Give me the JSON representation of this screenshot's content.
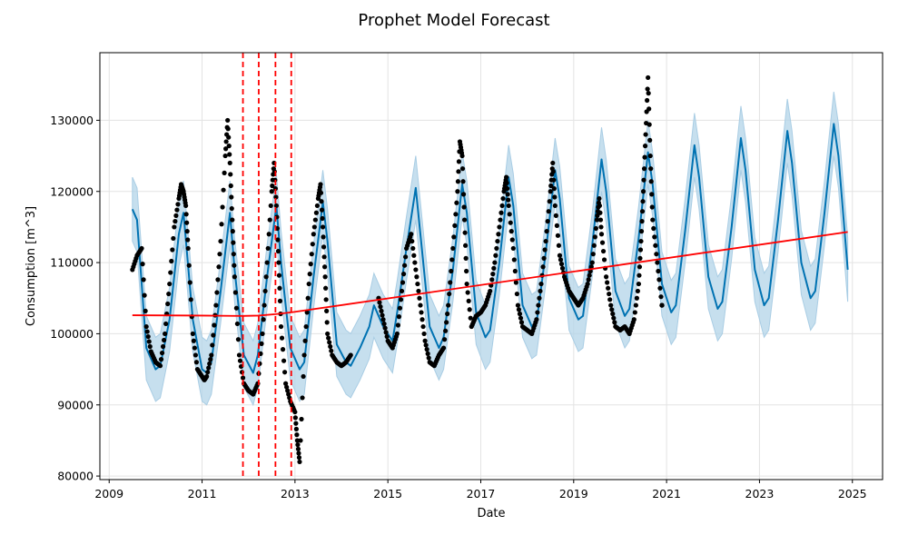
{
  "chart_data": {
    "type": "line",
    "title": "Prophet Model Forecast",
    "xlabel": "Date",
    "ylabel": "Consumption [m^3]",
    "xlim": [
      2008.8,
      2025.65
    ],
    "ylim": [
      79500,
      139500
    ],
    "grid": true,
    "xticks": [
      2009,
      2011,
      2013,
      2015,
      2017,
      2019,
      2021,
      2023,
      2025
    ],
    "xtick_labels": [
      "2009",
      "2011",
      "2013",
      "2015",
      "2017",
      "2019",
      "2021",
      "2023",
      "2025"
    ],
    "yticks": [
      80000,
      90000,
      100000,
      110000,
      120000,
      130000
    ],
    "ytick_labels": [
      "80000",
      "90000",
      "100000",
      "110000",
      "120000",
      "130000"
    ],
    "changepoints": [
      2011.88,
      2012.22,
      2012.58,
      2012.92
    ],
    "series": [
      {
        "name": "trend",
        "color": "#ff0000",
        "x": [
          2009.5,
          2011.0,
          2011.88,
          2012.22,
          2012.58,
          2012.92,
          2024.9
        ],
        "y": [
          102600,
          102550,
          102500,
          102550,
          102750,
          103000,
          114300
        ]
      },
      {
        "name": "forecast",
        "color": "#0072b2",
        "x": [
          2009.5,
          2009.6,
          2009.8,
          2010.0,
          2010.1,
          2010.3,
          2010.5,
          2010.6,
          2010.8,
          2011.0,
          2011.1,
          2011.2,
          2011.4,
          2011.6,
          2011.7,
          2011.9,
          2012.1,
          2012.2,
          2012.4,
          2012.6,
          2012.7,
          2012.9,
          2013.1,
          2013.2,
          2013.4,
          2013.6,
          2013.7,
          2013.9,
          2014.1,
          2014.2,
          2014.4,
          2014.6,
          2014.7,
          2014.9,
          2015.1,
          2015.2,
          2015.4,
          2015.6,
          2015.7,
          2015.9,
          2016.1,
          2016.2,
          2016.4,
          2016.6,
          2016.7,
          2016.9,
          2017.1,
          2017.2,
          2017.4,
          2017.6,
          2017.7,
          2017.9,
          2018.1,
          2018.2,
          2018.4,
          2018.6,
          2018.7,
          2018.9,
          2019.1,
          2019.2,
          2019.4,
          2019.6,
          2019.7,
          2019.9,
          2020.1,
          2020.2,
          2020.4,
          2020.6,
          2020.7,
          2020.9,
          2021.1,
          2021.2,
          2021.4,
          2021.6,
          2021.7,
          2021.9,
          2022.1,
          2022.2,
          2022.4,
          2022.6,
          2022.7,
          2022.9,
          2023.1,
          2023.2,
          2023.4,
          2023.6,
          2023.7,
          2023.9,
          2024.1,
          2024.2,
          2024.4,
          2024.6,
          2024.7,
          2024.9
        ],
        "y": [
          117500,
          116000,
          98000,
          95000,
          95500,
          102000,
          114000,
          117000,
          102000,
          95000,
          94500,
          96000,
          106000,
          117000,
          109000,
          97000,
          94500,
          97000,
          108000,
          118000,
          110000,
          98000,
          95000,
          96000,
          108000,
          118500,
          113000,
          98500,
          96000,
          95500,
          98000,
          101000,
          104000,
          101000,
          99000,
          103000,
          112000,
          120500,
          114000,
          101000,
          98000,
          99500,
          109000,
          121000,
          117000,
          103000,
          99500,
          100500,
          110000,
          122000,
          118000,
          104000,
          101000,
          101500,
          111500,
          123000,
          119000,
          105000,
          102000,
          102500,
          112500,
          124500,
          120000,
          106000,
          102500,
          103500,
          113500,
          125500,
          121000,
          107000,
          103000,
          104000,
          114500,
          126500,
          122000,
          108000,
          103500,
          104500,
          115000,
          127500,
          123000,
          109000,
          104000,
          105000,
          116000,
          128500,
          124000,
          110000,
          105000,
          106000,
          117000,
          129500,
          125000,
          109000
        ],
        "band_halfwidth": 4500,
        "band_color": "#b3d4e8"
      },
      {
        "name": "observations",
        "color": "#000000",
        "x": [
          2009.5,
          2009.6,
          2009.7,
          2009.8,
          2009.9,
          2010.0,
          2010.1,
          2010.2,
          2010.3,
          2010.4,
          2010.5,
          2010.55,
          2010.6,
          2010.65,
          2010.7,
          2010.8,
          2010.9,
          2011.0,
          2011.05,
          2011.1,
          2011.2,
          2011.3,
          2011.4,
          2011.5,
          2011.55,
          2011.6,
          2011.65,
          2011.7,
          2011.8,
          2011.9,
          2012.0,
          2012.1,
          2012.2,
          2012.3,
          2012.4,
          2012.5,
          2012.55,
          2012.6,
          2012.65,
          2012.7,
          2012.8,
          2012.9,
          2013.0,
          2013.05,
          2013.1,
          2013.2,
          2013.3,
          2013.4,
          2013.5,
          2013.55,
          2013.6,
          2013.65,
          2013.7,
          2013.8,
          2013.9,
          2014.0,
          2014.1,
          2014.2,
          2014.8,
          2014.9,
          2015.0,
          2015.1,
          2015.2,
          2015.3,
          2015.4,
          2015.5,
          2015.6,
          2015.7,
          2015.8,
          2015.9,
          2016.0,
          2016.1,
          2016.2,
          2016.3,
          2016.4,
          2016.5,
          2016.55,
          2016.6,
          2016.65,
          2016.7,
          2016.8,
          2016.9,
          2017.0,
          2017.1,
          2017.2,
          2017.3,
          2017.4,
          2017.5,
          2017.55,
          2017.6,
          2017.7,
          2017.8,
          2017.9,
          2018.0,
          2018.1,
          2018.2,
          2018.3,
          2018.4,
          2018.5,
          2018.55,
          2018.6,
          2018.7,
          2018.8,
          2018.9,
          2019.0,
          2019.1,
          2019.2,
          2019.3,
          2019.4,
          2019.5,
          2019.55,
          2019.6,
          2019.7,
          2019.8,
          2019.9,
          2020.0,
          2020.1,
          2020.2,
          2020.3,
          2020.4,
          2020.45,
          2020.5,
          2020.55,
          2020.6,
          2020.65,
          2020.7,
          2020.8,
          2020.9
        ],
        "y": [
          109000,
          111000,
          112000,
          101000,
          97500,
          96000,
          95500,
          100000,
          107000,
          115000,
          119000,
          121000,
          120000,
          118000,
          112000,
          100000,
          95000,
          94000,
          93500,
          94000,
          97000,
          104000,
          113000,
          125000,
          130000,
          124000,
          116000,
          108000,
          97000,
          93000,
          92000,
          91500,
          93000,
          100000,
          110000,
          120000,
          124000,
          118000,
          110000,
          101000,
          93000,
          90500,
          89000,
          85000,
          82000,
          97000,
          107000,
          114000,
          119000,
          121000,
          115000,
          108000,
          100000,
          97000,
          96000,
          95500,
          96000,
          97000,
          105000,
          102000,
          99000,
          98000,
          100000,
          106000,
          112000,
          114000,
          109000,
          104000,
          99000,
          96000,
          95500,
          97000,
          98000,
          104000,
          112000,
          120000,
          127000,
          125000,
          116000,
          107000,
          101000,
          102500,
          103000,
          104000,
          106000,
          110000,
          115000,
          120000,
          122000,
          118000,
          112000,
          104000,
          101000,
          100500,
          100000,
          102000,
          107000,
          113000,
          120000,
          124000,
          118000,
          111000,
          108000,
          106000,
          105000,
          104000,
          105000,
          107000,
          110000,
          116000,
          119000,
          114000,
          108000,
          104000,
          101000,
          100500,
          101000,
          100000,
          102000,
          107000,
          113000,
          120000,
          128000,
          136000,
          125000,
          116000,
          110000,
          104000
        ]
      }
    ]
  }
}
